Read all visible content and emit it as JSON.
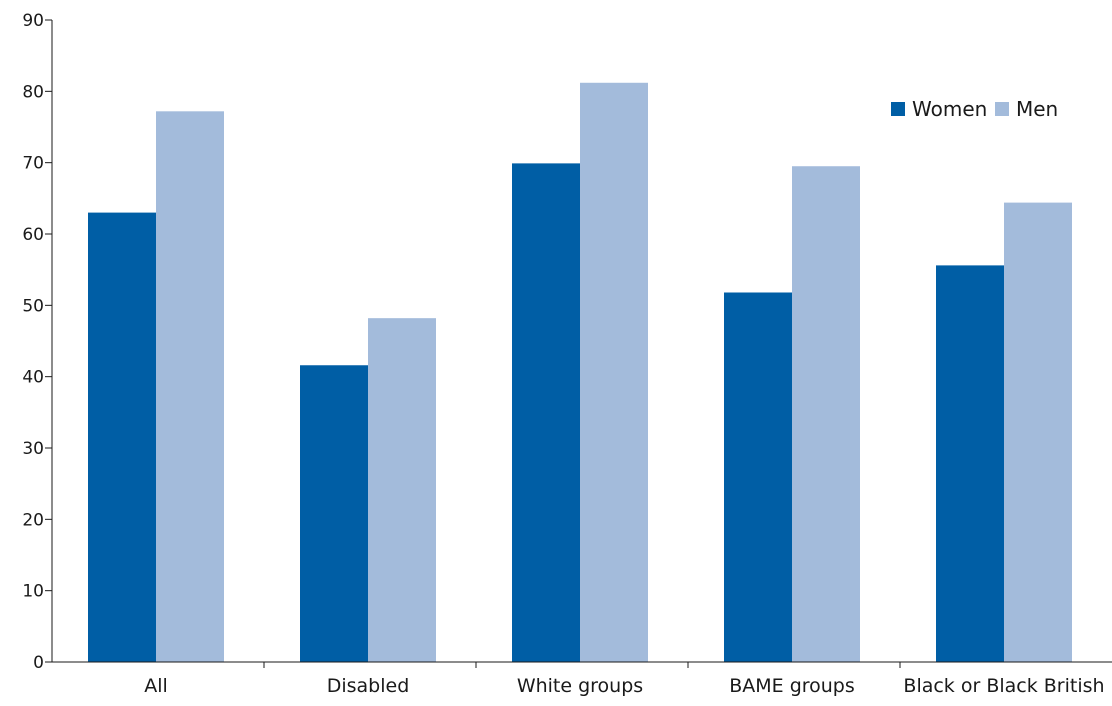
{
  "chart_data": {
    "type": "bar",
    "title": "",
    "xlabel": "",
    "ylabel": "",
    "categories": [
      "All",
      "Disabled",
      "White groups",
      "BAME groups",
      "Black or Black British"
    ],
    "series": [
      {
        "name": "Women",
        "color": "#005EA5",
        "values": [
          63.0,
          41.6,
          69.9,
          51.8,
          55.6
        ]
      },
      {
        "name": "Men",
        "color": "#A3BBDB",
        "values": [
          77.2,
          48.2,
          81.2,
          69.5,
          64.4
        ]
      }
    ],
    "ylim": [
      0,
      90
    ],
    "yticks": [
      0,
      10,
      20,
      30,
      40,
      50,
      60,
      70,
      80,
      90
    ],
    "grid": false,
    "legend": {
      "placement": "top-right",
      "entries": [
        "Women",
        "Men"
      ]
    }
  }
}
